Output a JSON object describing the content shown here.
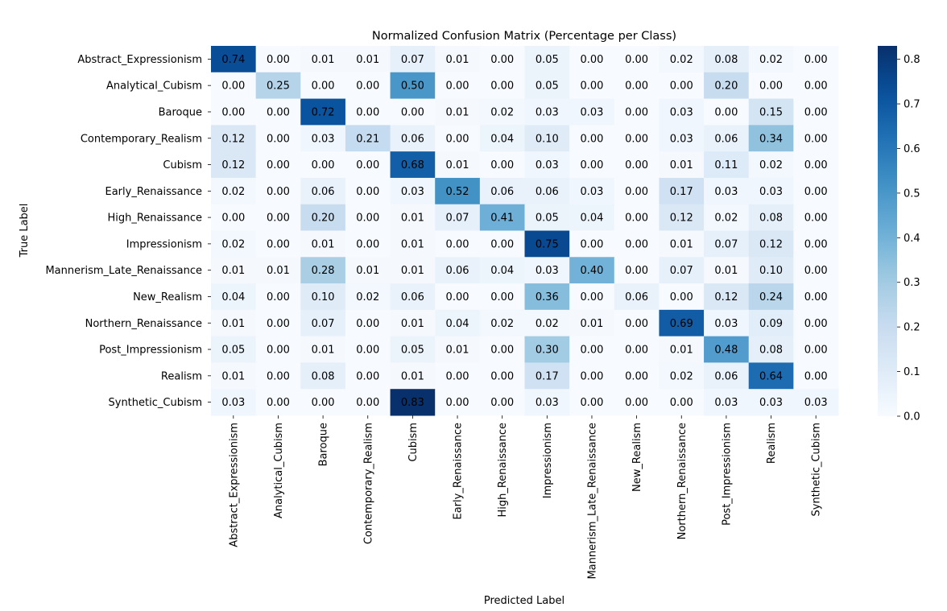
{
  "chart_data": {
    "type": "heatmap",
    "title": "Normalized Confusion Matrix (Percentage per Class)",
    "xlabel": "Predicted Label",
    "ylabel": "True Label",
    "x_categories": [
      "Abstract_Expressionism",
      "Analytical_Cubism",
      "Baroque",
      "Contemporary_Realism",
      "Cubism",
      "Early_Renaissance",
      "High_Renaissance",
      "Impressionism",
      "Mannerism_Late_Renaissance",
      "New_Realism",
      "Northern_Renaissance",
      "Post_Impressionism",
      "Realism",
      "Synthetic_Cubism"
    ],
    "y_categories": [
      "Abstract_Expressionism",
      "Analytical_Cubism",
      "Baroque",
      "Contemporary_Realism",
      "Cubism",
      "Early_Renaissance",
      "High_Renaissance",
      "Impressionism",
      "Mannerism_Late_Renaissance",
      "New_Realism",
      "Northern_Renaissance",
      "Post_Impressionism",
      "Realism",
      "Synthetic_Cubism"
    ],
    "values": [
      [
        0.74,
        0.0,
        0.01,
        0.01,
        0.07,
        0.01,
        0.0,
        0.05,
        0.0,
        0.0,
        0.02,
        0.08,
        0.02,
        0.0
      ],
      [
        0.0,
        0.25,
        0.0,
        0.0,
        0.5,
        0.0,
        0.0,
        0.05,
        0.0,
        0.0,
        0.0,
        0.2,
        0.0,
        0.0
      ],
      [
        0.0,
        0.0,
        0.72,
        0.0,
        0.0,
        0.01,
        0.02,
        0.03,
        0.03,
        0.0,
        0.03,
        0.0,
        0.15,
        0.0
      ],
      [
        0.12,
        0.0,
        0.03,
        0.21,
        0.06,
        0.0,
        0.04,
        0.1,
        0.0,
        0.0,
        0.03,
        0.06,
        0.34,
        0.0
      ],
      [
        0.12,
        0.0,
        0.0,
        0.0,
        0.68,
        0.01,
        0.0,
        0.03,
        0.0,
        0.0,
        0.01,
        0.11,
        0.02,
        0.0
      ],
      [
        0.02,
        0.0,
        0.06,
        0.0,
        0.03,
        0.52,
        0.06,
        0.06,
        0.03,
        0.0,
        0.17,
        0.03,
        0.03,
        0.0
      ],
      [
        0.0,
        0.0,
        0.2,
        0.0,
        0.01,
        0.07,
        0.41,
        0.05,
        0.04,
        0.0,
        0.12,
        0.02,
        0.08,
        0.0
      ],
      [
        0.02,
        0.0,
        0.01,
        0.0,
        0.01,
        0.0,
        0.0,
        0.75,
        0.0,
        0.0,
        0.01,
        0.07,
        0.12,
        0.0
      ],
      [
        0.01,
        0.01,
        0.28,
        0.01,
        0.01,
        0.06,
        0.04,
        0.03,
        0.4,
        0.0,
        0.07,
        0.01,
        0.1,
        0.0
      ],
      [
        0.04,
        0.0,
        0.1,
        0.02,
        0.06,
        0.0,
        0.0,
        0.36,
        0.0,
        0.06,
        0.0,
        0.12,
        0.24,
        0.0
      ],
      [
        0.01,
        0.0,
        0.07,
        0.0,
        0.01,
        0.04,
        0.02,
        0.02,
        0.01,
        0.0,
        0.69,
        0.03,
        0.09,
        0.0
      ],
      [
        0.05,
        0.0,
        0.01,
        0.0,
        0.05,
        0.01,
        0.0,
        0.3,
        0.0,
        0.0,
        0.01,
        0.48,
        0.08,
        0.0
      ],
      [
        0.01,
        0.0,
        0.08,
        0.0,
        0.01,
        0.0,
        0.0,
        0.17,
        0.0,
        0.0,
        0.02,
        0.06,
        0.64,
        0.0
      ],
      [
        0.03,
        0.0,
        0.0,
        0.0,
        0.83,
        0.0,
        0.0,
        0.03,
        0.0,
        0.0,
        0.0,
        0.03,
        0.03,
        0.03
      ]
    ],
    "colorbar": {
      "min": 0.0,
      "max": 0.83,
      "ticks": [
        "0.0",
        "0.1",
        "0.2",
        "0.3",
        "0.4",
        "0.5",
        "0.6",
        "0.7",
        "0.8"
      ],
      "colormap": "Blues"
    },
    "annotation_format": "0.00",
    "grid": false
  }
}
